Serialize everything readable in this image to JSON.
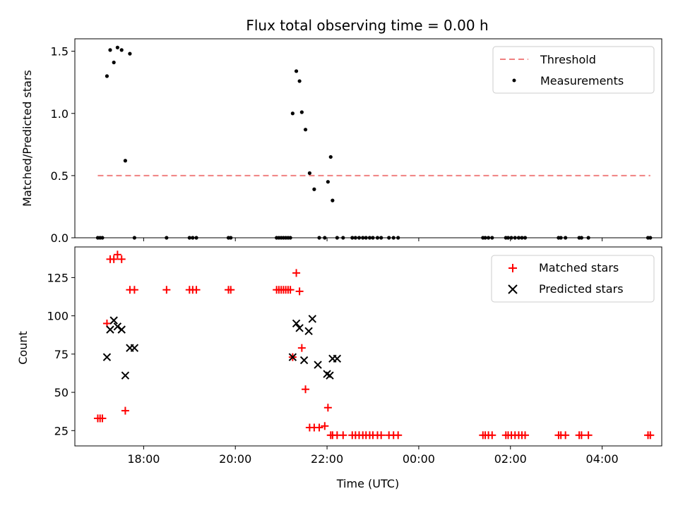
{
  "title": "Flux total observing time = 0.00 h",
  "colors": {
    "threshold": "#f08080",
    "measurements": "#000000",
    "matched": "#ff0000",
    "predicted": "#000000"
  },
  "chart_data": [
    {
      "type": "line",
      "xlabel": "",
      "ylabel": "Matched/Predicted stars",
      "xlim": [
        16.5,
        29.3
      ],
      "ylim": [
        0,
        1.6
      ],
      "yticks": [
        0.0,
        0.5,
        1.0,
        1.5
      ],
      "ytick_labels": [
        "0.0",
        "0.5",
        "1.0",
        "1.5"
      ],
      "legend_position": "top-right",
      "series": [
        {
          "name": "Threshold",
          "style": "dashed-line",
          "x": [
            17.0,
            29.05
          ],
          "y": [
            0.5,
            0.5
          ]
        },
        {
          "name": "Measurements",
          "style": "scatter-dot",
          "x": [
            17.0,
            17.05,
            17.1,
            17.2,
            17.27,
            17.35,
            17.43,
            17.52,
            17.6,
            17.7,
            17.8,
            18.5,
            19.0,
            19.07,
            19.15,
            19.85,
            19.9,
            20.9,
            20.95,
            21.0,
            21.05,
            21.1,
            21.15,
            21.2,
            21.25,
            21.33,
            21.4,
            21.45,
            21.53,
            21.62,
            21.72,
            21.83,
            21.95,
            22.02,
            22.08,
            22.12,
            22.22,
            22.35,
            22.55,
            22.62,
            22.7,
            22.78,
            22.85,
            22.93,
            23.0,
            23.1,
            23.18,
            23.35,
            23.45,
            23.55,
            25.4,
            25.45,
            25.52,
            25.6,
            25.9,
            25.95,
            26.02,
            26.1,
            26.18,
            26.25,
            26.32,
            27.05,
            27.1,
            27.2,
            27.5,
            27.55,
            27.7,
            29.0,
            29.05
          ],
          "y": [
            0,
            0,
            0,
            1.3,
            1.51,
            1.41,
            1.53,
            1.51,
            0.62,
            1.48,
            0,
            0,
            0,
            0,
            0,
            0,
            0,
            0,
            0,
            0,
            0,
            0,
            0,
            0,
            1.0,
            1.34,
            1.26,
            1.01,
            0.87,
            0.52,
            0.39,
            0,
            0,
            0.45,
            0.65,
            0.3,
            0,
            0,
            0,
            0,
            0,
            0,
            0,
            0,
            0,
            0,
            0,
            0,
            0,
            0,
            0,
            0,
            0,
            0,
            0,
            0,
            0,
            0,
            0,
            0,
            0,
            0,
            0,
            0,
            0,
            0,
            0,
            0,
            0
          ]
        }
      ]
    },
    {
      "type": "scatter",
      "xlabel": "Time (UTC)",
      "ylabel": "Count",
      "xlim": [
        16.5,
        29.3
      ],
      "ylim": [
        15,
        145
      ],
      "yticks": [
        25,
        50,
        75,
        100,
        125
      ],
      "ytick_labels": [
        "25",
        "50",
        "75",
        "100",
        "125"
      ],
      "xticks": [
        18,
        20,
        22,
        24,
        26,
        28
      ],
      "xtick_labels": [
        "18:00",
        "20:00",
        "22:00",
        "00:00",
        "02:00",
        "04:00"
      ],
      "legend_position": "top-right",
      "series": [
        {
          "name": "Matched stars",
          "marker": "plus",
          "x": [
            17.0,
            17.05,
            17.1,
            17.2,
            17.27,
            17.35,
            17.43,
            17.52,
            17.6,
            17.7,
            17.8,
            18.5,
            19.0,
            19.07,
            19.15,
            19.85,
            19.9,
            20.9,
            20.95,
            21.0,
            21.05,
            21.1,
            21.15,
            21.2,
            21.25,
            21.33,
            21.4,
            21.45,
            21.53,
            21.62,
            21.72,
            21.83,
            21.95,
            22.02,
            22.08,
            22.12,
            22.22,
            22.35,
            22.55,
            22.62,
            22.7,
            22.78,
            22.85,
            22.93,
            23.0,
            23.1,
            23.18,
            23.35,
            23.45,
            23.55,
            25.4,
            25.45,
            25.52,
            25.6,
            25.9,
            25.95,
            26.02,
            26.1,
            26.18,
            26.25,
            26.32,
            27.05,
            27.1,
            27.2,
            27.5,
            27.55,
            27.7,
            29.0,
            29.05
          ],
          "y": [
            33,
            33,
            33,
            95,
            137,
            137,
            140,
            137,
            38,
            117,
            117,
            117,
            117,
            117,
            117,
            117,
            117,
            117,
            117,
            117,
            117,
            117,
            117,
            117,
            73,
            128,
            116,
            79,
            52,
            27,
            27,
            27,
            28,
            40,
            22,
            22,
            22,
            22,
            22,
            22,
            22,
            22,
            22,
            22,
            22,
            22,
            22,
            22,
            22,
            22,
            22,
            22,
            22,
            22,
            22,
            22,
            22,
            22,
            22,
            22,
            22,
            22,
            22,
            22,
            22,
            22,
            22,
            22,
            22
          ]
        },
        {
          "name": "Predicted stars",
          "marker": "x",
          "x": [
            17.2,
            17.27,
            17.35,
            17.43,
            17.52,
            17.6,
            17.7,
            17.8,
            21.25,
            21.33,
            21.4,
            21.5,
            21.6,
            21.68,
            21.8,
            22.0,
            22.06,
            22.12,
            22.22
          ],
          "y": [
            73,
            91,
            97,
            93,
            91,
            61,
            79,
            79,
            73,
            95,
            92,
            71,
            90,
            98,
            68,
            62,
            61,
            72,
            72
          ]
        }
      ]
    }
  ]
}
